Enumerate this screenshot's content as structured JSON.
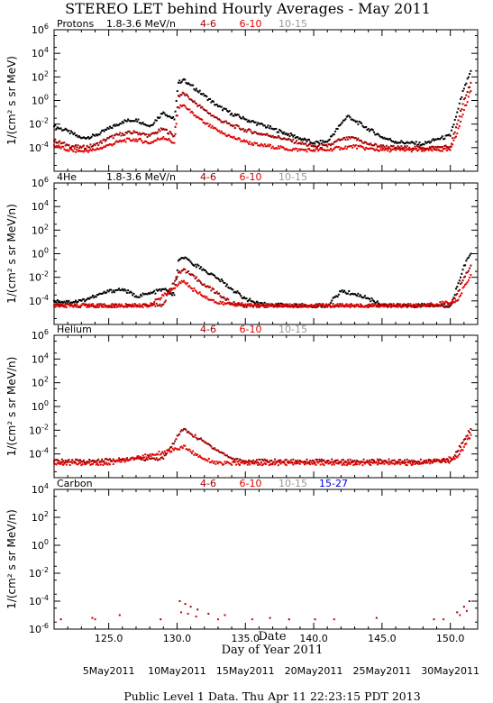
{
  "title": "STEREO LET behind Hourly Averages - May 2011",
  "xlabel": "Day of Year 2011",
  "date_axis_label": "Date",
  "footer": "Public Level 1 Data. Thu Apr 11 22:23:15 PDT 2013",
  "x_ticks": [
    "125.0",
    "130.0",
    "135.0",
    "140.0",
    "145.0",
    "150.0"
  ],
  "date_ticks": [
    "5May2011",
    "10May2011",
    "15May2011",
    "20May2011",
    "25May2011",
    "30May2011"
  ],
  "colors": {
    "black": "#000000",
    "darkred": "#a00000",
    "red": "#e00000",
    "gray": "#999999",
    "blue": "#0000dd"
  },
  "chart_data": [
    {
      "type": "scatter",
      "species": "Protons",
      "energy_label": "1.8-3.6 MeV/n",
      "legend": [
        "4-6",
        "6-10",
        "10-15"
      ],
      "ylabel": "1/(cm² s sr MeV)",
      "ylim_log10": [
        -6,
        6
      ],
      "yticks": [
        "10^-4",
        "10^-2",
        "10^0",
        "10^2",
        "10^4",
        "10^6"
      ],
      "xlim": [
        121,
        152
      ],
      "series": [
        {
          "name": "1.8-3.6 MeV/n",
          "color": "black",
          "points": [
            [
              121,
              -2.2
            ],
            [
              122,
              -2.6
            ],
            [
              123,
              -3.2
            ],
            [
              124,
              -3.0
            ],
            [
              125,
              -2.4
            ],
            [
              126,
              -1.8
            ],
            [
              127,
              -1.6
            ],
            [
              128,
              -2.2
            ],
            [
              129,
              -1.0
            ],
            [
              129.8,
              -1.6
            ],
            [
              130.1,
              1.5
            ],
            [
              130.5,
              1.8
            ],
            [
              131,
              1.3
            ],
            [
              132,
              0.4
            ],
            [
              133,
              -0.5
            ],
            [
              134,
              -1.1
            ],
            [
              135,
              -1.6
            ],
            [
              136,
              -2.0
            ],
            [
              137,
              -2.4
            ],
            [
              138,
              -2.8
            ],
            [
              139,
              -3.2
            ],
            [
              140,
              -3.6
            ],
            [
              141,
              -3.5
            ],
            [
              142,
              -2.0
            ],
            [
              142.5,
              -1.3
            ],
            [
              143,
              -1.7
            ],
            [
              144,
              -2.4
            ],
            [
              145,
              -3.1
            ],
            [
              146,
              -3.5
            ],
            [
              147,
              -3.6
            ],
            [
              148,
              -3.7
            ],
            [
              149,
              -3.3
            ],
            [
              150,
              -3.0
            ],
            [
              150.5,
              -1.0
            ],
            [
              151,
              1.0
            ],
            [
              151.5,
              2.5
            ]
          ]
        },
        {
          "name": "4-6",
          "color": "darkred",
          "points": [
            [
              121,
              -3.4
            ],
            [
              122,
              -3.8
            ],
            [
              123,
              -4.0
            ],
            [
              124,
              -3.8
            ],
            [
              125,
              -3.2
            ],
            [
              126,
              -2.8
            ],
            [
              127,
              -2.7
            ],
            [
              128,
              -3.0
            ],
            [
              129,
              -2.4
            ],
            [
              129.8,
              -3.0
            ],
            [
              130.1,
              0.4
            ],
            [
              130.5,
              0.6
            ],
            [
              131,
              0.1
            ],
            [
              132,
              -0.8
            ],
            [
              133,
              -1.6
            ],
            [
              134,
              -2.1
            ],
            [
              135,
              -2.5
            ],
            [
              136,
              -2.8
            ],
            [
              137,
              -3.0
            ],
            [
              138,
              -3.3
            ],
            [
              139,
              -3.6
            ],
            [
              140,
              -3.9
            ],
            [
              141,
              -3.9
            ],
            [
              142,
              -3.3
            ],
            [
              143,
              -3.2
            ],
            [
              144,
              -3.7
            ],
            [
              145,
              -3.9
            ],
            [
              146,
              -4.0
            ],
            [
              147,
              -4.0
            ],
            [
              148,
              -4.0
            ],
            [
              149,
              -4.0
            ],
            [
              150,
              -3.9
            ],
            [
              150.5,
              -2.0
            ],
            [
              151,
              0.1
            ],
            [
              151.5,
              1.5
            ]
          ]
        },
        {
          "name": "6-10",
          "color": "red",
          "points": [
            [
              121,
              -3.8
            ],
            [
              122,
              -4.2
            ],
            [
              123,
              -4.3
            ],
            [
              124,
              -4.2
            ],
            [
              125,
              -3.8
            ],
            [
              126,
              -3.4
            ],
            [
              127,
              -3.3
            ],
            [
              128,
              -3.6
            ],
            [
              129,
              -3.1
            ],
            [
              129.8,
              -3.6
            ],
            [
              130.1,
              -0.6
            ],
            [
              130.5,
              -0.4
            ],
            [
              131,
              -1.0
            ],
            [
              132,
              -1.9
            ],
            [
              133,
              -2.6
            ],
            [
              134,
              -3.1
            ],
            [
              135,
              -3.5
            ],
            [
              136,
              -3.8
            ],
            [
              137,
              -3.9
            ],
            [
              138,
              -4.1
            ],
            [
              139,
              -4.2
            ],
            [
              140,
              -4.2
            ],
            [
              141,
              -4.2
            ],
            [
              142,
              -4.0
            ],
            [
              143,
              -3.9
            ],
            [
              144,
              -4.1
            ],
            [
              145,
              -4.2
            ],
            [
              146,
              -4.2
            ],
            [
              147,
              -4.2
            ],
            [
              148,
              -4.2
            ],
            [
              149,
              -4.2
            ],
            [
              150,
              -4.2
            ],
            [
              150.5,
              -2.8
            ],
            [
              151,
              -0.8
            ],
            [
              151.5,
              0.8
            ]
          ]
        }
      ]
    },
    {
      "type": "scatter",
      "species": "4He",
      "energy_label": "1.8-3.6 MeV/n",
      "legend": [
        "4-6",
        "6-10",
        "10-15"
      ],
      "ylabel": "1/(cm² s sr MeV/n)",
      "ylim_log10": [
        -6,
        6
      ],
      "yticks": [
        "10^-4",
        "10^-2",
        "10^0",
        "10^2",
        "10^4",
        "10^6"
      ],
      "xlim": [
        121,
        152
      ],
      "series": [
        {
          "name": "1.8-3.6 MeV/n",
          "color": "black",
          "points": [
            [
              121,
              -4.0
            ],
            [
              122,
              -4.1
            ],
            [
              123,
              -4.0
            ],
            [
              124,
              -3.6
            ],
            [
              125,
              -3.2
            ],
            [
              126,
              -3.0
            ],
            [
              127,
              -3.6
            ],
            [
              128,
              -3.4
            ],
            [
              129,
              -3.0
            ],
            [
              129.8,
              -3.5
            ],
            [
              130.1,
              -0.6
            ],
            [
              130.5,
              -0.4
            ],
            [
              131,
              -0.7
            ],
            [
              132,
              -1.4
            ],
            [
              133,
              -2.1
            ],
            [
              134,
              -3.0
            ],
            [
              135,
              -3.8
            ],
            [
              136,
              -4.3
            ],
            [
              137,
              -4.3
            ],
            [
              138,
              -4.4
            ],
            [
              139,
              -4.4
            ],
            [
              140,
              -4.4
            ],
            [
              141,
              -4.4
            ],
            [
              142,
              -3.2
            ],
            [
              143,
              -3.4
            ],
            [
              144,
              -3.8
            ],
            [
              145,
              -4.3
            ],
            [
              146,
              -4.4
            ],
            [
              147,
              -4.4
            ],
            [
              148,
              -4.4
            ],
            [
              149,
              -4.4
            ],
            [
              150,
              -4.4
            ],
            [
              150.5,
              -2.8
            ],
            [
              151,
              -1.0
            ],
            [
              151.5,
              0.0
            ]
          ]
        },
        {
          "name": "4-6",
          "color": "darkred",
          "points": [
            [
              121,
              -4.4
            ],
            [
              123,
              -4.4
            ],
            [
              125,
              -4.4
            ],
            [
              127,
              -4.4
            ],
            [
              129,
              -4.3
            ],
            [
              130.1,
              -1.6
            ],
            [
              130.5,
              -1.3
            ],
            [
              131,
              -1.8
            ],
            [
              132,
              -2.6
            ],
            [
              133,
              -3.4
            ],
            [
              134,
              -4.2
            ],
            [
              135,
              -4.4
            ],
            [
              140,
              -4.4
            ],
            [
              145,
              -4.4
            ],
            [
              150,
              -4.4
            ],
            [
              150.5,
              -3.4
            ],
            [
              151,
              -2.0
            ],
            [
              151.5,
              -1.0
            ]
          ]
        },
        {
          "name": "6-10",
          "color": "red",
          "points": [
            [
              121,
              -4.4
            ],
            [
              124,
              -4.4
            ],
            [
              128,
              -4.4
            ],
            [
              130.1,
              -2.6
            ],
            [
              130.5,
              -2.3
            ],
            [
              131,
              -2.9
            ],
            [
              132,
              -3.6
            ],
            [
              133,
              -4.2
            ],
            [
              136,
              -4.4
            ],
            [
              142,
              -4.4
            ],
            [
              148,
              -4.4
            ],
            [
              150.5,
              -4.0
            ],
            [
              151,
              -2.8
            ],
            [
              151.5,
              -1.8
            ]
          ]
        }
      ]
    },
    {
      "type": "scatter",
      "species": "Helium",
      "energy_label": "",
      "legend": [
        "4-6",
        "6-10",
        "10-15"
      ],
      "ylabel": "1/(cm² s sr MeV/n)",
      "ylim_log10": [
        -6,
        6
      ],
      "yticks": [
        "10^-4",
        "10^-2",
        "10^0",
        "10^2",
        "10^4",
        "10^6"
      ],
      "xlim": [
        121,
        152
      ],
      "series": [
        {
          "name": "4-6",
          "color": "darkred",
          "points": [
            [
              121,
              -4.6
            ],
            [
              124,
              -4.6
            ],
            [
              127,
              -4.4
            ],
            [
              129,
              -4.4
            ],
            [
              130.1,
              -2.4
            ],
            [
              130.5,
              -1.9
            ],
            [
              131,
              -2.3
            ],
            [
              132,
              -3.0
            ],
            [
              133,
              -3.7
            ],
            [
              134,
              -4.4
            ],
            [
              135,
              -4.6
            ],
            [
              140,
              -4.6
            ],
            [
              145,
              -4.6
            ],
            [
              150,
              -4.6
            ],
            [
              150.5,
              -3.8
            ],
            [
              151,
              -2.8
            ],
            [
              151.5,
              -1.9
            ]
          ]
        },
        {
          "name": "6-10",
          "color": "red",
          "points": [
            [
              121,
              -4.8
            ],
            [
              125,
              -4.8
            ],
            [
              130.1,
              -3.6
            ],
            [
              130.5,
              -3.3
            ],
            [
              131,
              -3.8
            ],
            [
              132,
              -4.4
            ],
            [
              133,
              -4.8
            ],
            [
              140,
              -4.8
            ],
            [
              148,
              -4.8
            ],
            [
              150.5,
              -4.3
            ],
            [
              151,
              -3.4
            ],
            [
              151.5,
              -2.4
            ]
          ]
        }
      ]
    },
    {
      "type": "scatter",
      "species": "Carbon",
      "energy_label": "",
      "legend": [
        "4-6",
        "6-10",
        "10-15",
        "15-27"
      ],
      "ylabel": "1/(cm² s sr MeV/n)",
      "ylim_log10": [
        -6,
        4
      ],
      "yticks": [
        "10^-6",
        "10^-4",
        "10^-2",
        "10^0",
        "10^2",
        "10^4"
      ],
      "xlim": [
        121,
        152
      ],
      "series": [
        {
          "name": "4-6",
          "color": "darkred",
          "points": [
            [
              121.5,
              -5.3
            ],
            [
              123.8,
              -5.2
            ],
            [
              125.8,
              -5.0
            ],
            [
              128.8,
              -5.3
            ],
            [
              130.2,
              -4.0
            ],
            [
              130.6,
              -4.2
            ],
            [
              131.0,
              -4.4
            ],
            [
              131.5,
              -4.6
            ],
            [
              132.3,
              -4.9
            ],
            [
              133.5,
              -5.0
            ],
            [
              136.8,
              -5.2
            ],
            [
              138.2,
              -5.3
            ],
            [
              140.1,
              -5.3
            ],
            [
              144.6,
              -5.2
            ],
            [
              148.8,
              -5.3
            ],
            [
              150.5,
              -4.8
            ],
            [
              151.0,
              -4.4
            ],
            [
              151.4,
              -4.0
            ]
          ]
        },
        {
          "name": "6-10",
          "color": "red",
          "points": [
            [
              124.0,
              -5.3
            ],
            [
              130.3,
              -4.8
            ],
            [
              130.8,
              -4.9
            ],
            [
              131.4,
              -5.1
            ],
            [
              133.0,
              -5.3
            ],
            [
              135.5,
              -5.3
            ],
            [
              141.5,
              -5.3
            ],
            [
              149.5,
              -5.3
            ],
            [
              150.7,
              -5.0
            ],
            [
              151.2,
              -4.7
            ]
          ]
        }
      ]
    }
  ]
}
